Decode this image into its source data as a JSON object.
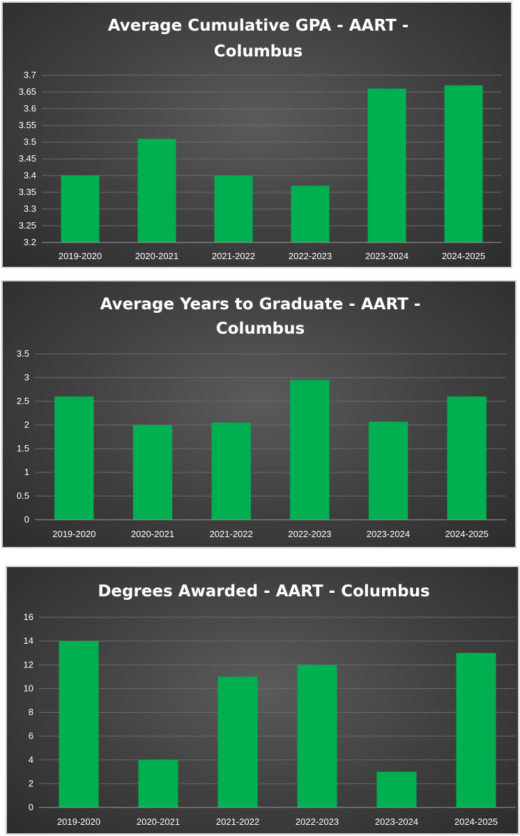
{
  "chart_data": [
    {
      "type": "bar",
      "title_lines": [
        "Average Cumulative GPA - AART -",
        "Columbus"
      ],
      "categories": [
        "2019-2020",
        "2020-2021",
        "2021-2022",
        "2022-2023",
        "2023-2024",
        "2024-2025"
      ],
      "values": [
        3.4,
        3.51,
        3.4,
        3.37,
        3.66,
        3.67
      ],
      "ylim": [
        3.2,
        3.7
      ],
      "yticks": [
        "3.2",
        "3.25",
        "3.3",
        "3.35",
        "3.4",
        "3.45",
        "3.5",
        "3.55",
        "3.6",
        "3.65",
        "3.7"
      ],
      "grid": true,
      "bar_color": "#00b050"
    },
    {
      "type": "bar",
      "title_lines": [
        "Average Years to Graduate - AART -",
        "Columbus"
      ],
      "categories": [
        "2019-2020",
        "2020-2021",
        "2021-2022",
        "2022-2023",
        "2023-2024",
        "2024-2025"
      ],
      "values": [
        2.6,
        2.0,
        2.05,
        2.95,
        2.07,
        2.6
      ],
      "ylim": [
        0,
        3.5
      ],
      "yticks": [
        "0",
        "0.5",
        "1",
        "1.5",
        "2",
        "2.5",
        "3",
        "3.5"
      ],
      "grid": true,
      "bar_color": "#00b050"
    },
    {
      "type": "bar",
      "title_lines": [
        "Degrees Awarded - AART - Columbus"
      ],
      "categories": [
        "2019-2020",
        "2020-2021",
        "2021-2022",
        "2022-2023",
        "2023-2024",
        "2024-2025"
      ],
      "values": [
        14,
        4,
        11,
        12,
        3,
        13
      ],
      "ylim": [
        0,
        16
      ],
      "yticks": [
        "0",
        "2",
        "4",
        "6",
        "8",
        "10",
        "12",
        "14",
        "16"
      ],
      "grid": true,
      "bar_color": "#00b050"
    }
  ]
}
